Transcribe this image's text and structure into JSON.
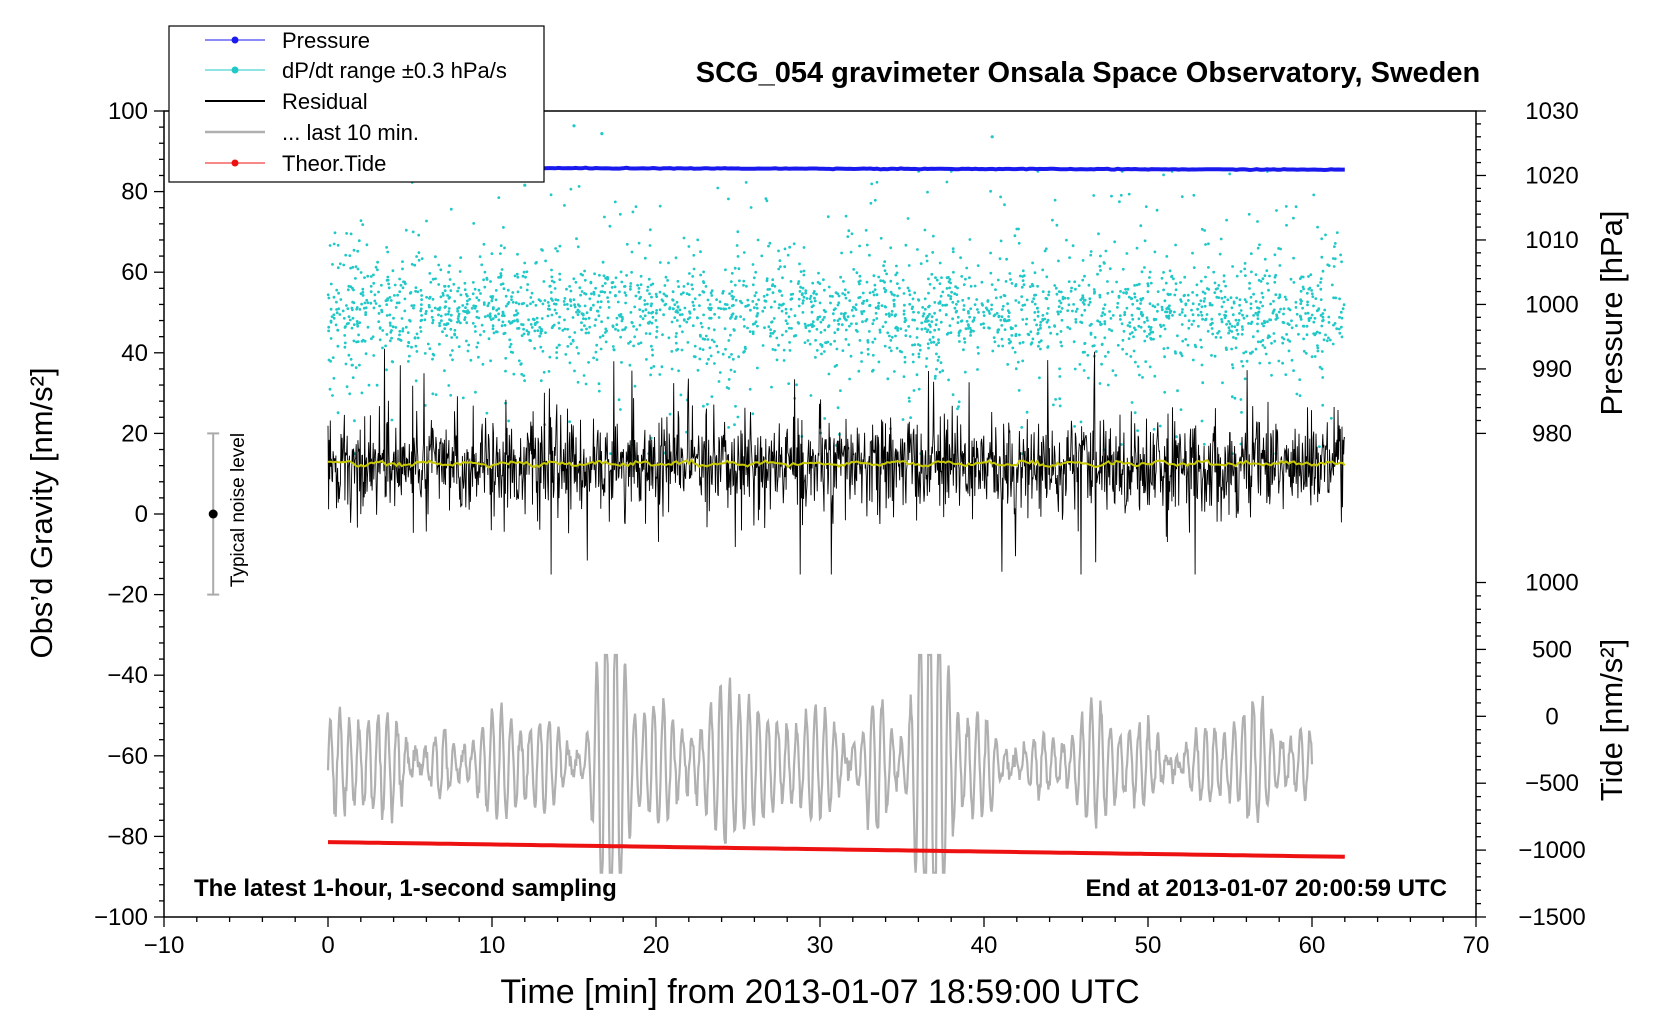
{
  "chart_data": {
    "type": "line",
    "title": "SCG_054 gravimeter Onsala Space Observatory, Sweden",
    "xlabel": "Time [min] from 2013-01-07 18:59:00 UTC",
    "ylabel_left": "Obs’d Gravity [nm/s²]",
    "ylabel_right_pressure": "Pressure [hPa]",
    "ylabel_right_tide": "Tide [nm/s²]",
    "xlim": [
      -10,
      70
    ],
    "ylim_left": [
      -100,
      100
    ],
    "pressure_axis_range": [
      980,
      1030
    ],
    "tide_axis_range": [
      -1500,
      1000
    ],
    "x_ticks": [
      "−10",
      "0",
      "10",
      "20",
      "30",
      "40",
      "50",
      "60",
      "70"
    ],
    "x_tick_values": [
      -10,
      0,
      10,
      20,
      30,
      40,
      50,
      60,
      70
    ],
    "y_left_ticks": [
      "100",
      "80",
      "60",
      "40",
      "20",
      "0",
      "−20",
      "−40",
      "−60",
      "−80",
      "−100"
    ],
    "y_left_tick_values": [
      100,
      80,
      60,
      40,
      20,
      0,
      -20,
      -40,
      -60,
      -80,
      -100
    ],
    "pressure_ticks": [
      "1030",
      "1020",
      "1010",
      "1000",
      "990",
      "980"
    ],
    "pressure_tick_values": [
      1030,
      1020,
      1010,
      1000,
      990,
      980
    ],
    "tide_ticks": [
      "1000",
      "500",
      "0",
      "−500",
      "−1000",
      "−1500"
    ],
    "tide_tick_values": [
      1000,
      500,
      0,
      -500,
      -1000,
      -1500
    ],
    "legend": {
      "position": "top-left",
      "entries": [
        {
          "label": "Pressure",
          "color": "#1a1aee",
          "marker": "dot"
        },
        {
          "label": "dP/dt range ±0.3 hPa/s",
          "color": "#20c8c8",
          "marker": "dot"
        },
        {
          "label": "Residual",
          "color": "#000000",
          "marker": "line"
        },
        {
          "label": "... last 10 min.",
          "color": "#b0b0b0",
          "marker": "line"
        },
        {
          "label": "Theor.Tide",
          "color": "#ee1111",
          "marker": "dot"
        }
      ]
    },
    "annotation_left": "The latest 1-hour, 1-second sampling",
    "annotation_right": "End at 2013-01-07 20:00:59 UTC",
    "noise_label": "Typical noise level",
    "noise_bar": {
      "x": -7,
      "center": 0,
      "low": -20,
      "high": 20
    },
    "series": [
      {
        "name": "Pressure",
        "axis": "pressure",
        "color": "#1a1aee",
        "x_range": [
          0,
          62
        ],
        "start": 1021.2,
        "end": 1020.9,
        "outliers": [
          [
            15,
            1027.7
          ],
          [
            16.7,
            1026.5
          ],
          [
            40.5,
            1026.0
          ],
          [
            12,
            1018.5
          ]
        ]
      },
      {
        "name": "dP/dt range ±0.3 hPa/s",
        "axis": "left",
        "color": "#20c8c8",
        "x_range": [
          0,
          62
        ],
        "center": 50,
        "spread": 6,
        "tail_low": 15,
        "tail_high": 85
      },
      {
        "name": "Residual",
        "axis": "left",
        "color": "#000000",
        "x_range": [
          0,
          62
        ],
        "center": 12,
        "amplitude_typical": 6,
        "max": 41,
        "min": -15
      },
      {
        "name": "Residual smoothed",
        "axis": "left",
        "color": "#c8c800",
        "x_range": [
          0,
          62
        ],
        "center": 12.5
      },
      {
        "name": "... last 10 min.",
        "axis": "left",
        "color": "#b0b0b0",
        "x_range": [
          0,
          60
        ],
        "center": -62,
        "min": -89,
        "max": -35
      },
      {
        "name": "Theor.Tide",
        "axis": "tide",
        "color": "#ee1111",
        "x_range": [
          0,
          62
        ],
        "start": -940,
        "end": -1050
      }
    ]
  }
}
